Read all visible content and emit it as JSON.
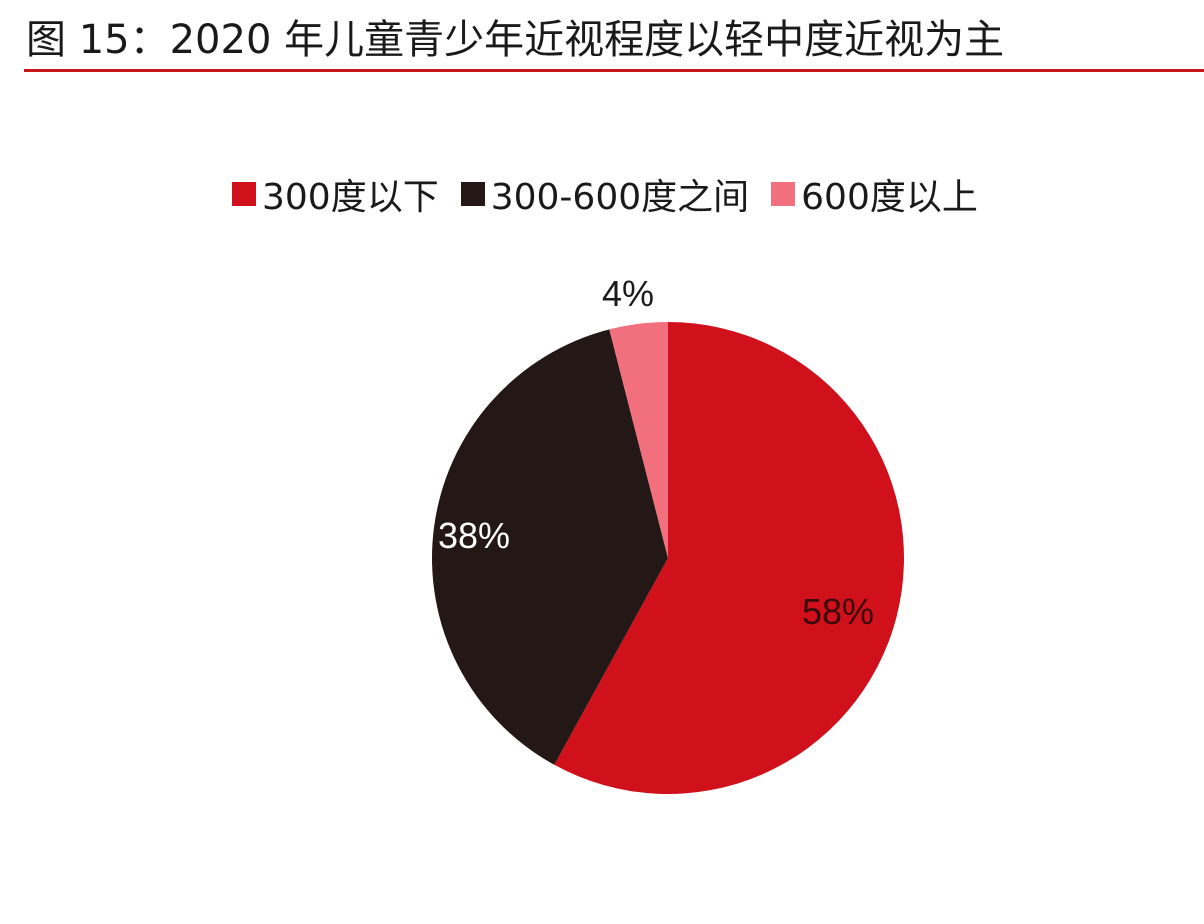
{
  "title": "图 15：2020 年儿童青少年近视程度以轻中度近视为主",
  "colors": {
    "accent_rule": "#c8161d"
  },
  "chart_data": {
    "type": "pie",
    "title": "",
    "legend_position": "top",
    "slices": [
      {
        "name": "300度以下",
        "value": 58,
        "label": "58%",
        "color": "#d0101a",
        "label_color": "#3a0a0a"
      },
      {
        "name": "300-600度之间",
        "value": 38,
        "label": "38%",
        "color": "#231815",
        "label_color": "#ffffff"
      },
      {
        "name": "600度以上",
        "value": 4,
        "label": "4%",
        "color": "#f2707e",
        "label_color": "#1a1a1a"
      }
    ]
  }
}
